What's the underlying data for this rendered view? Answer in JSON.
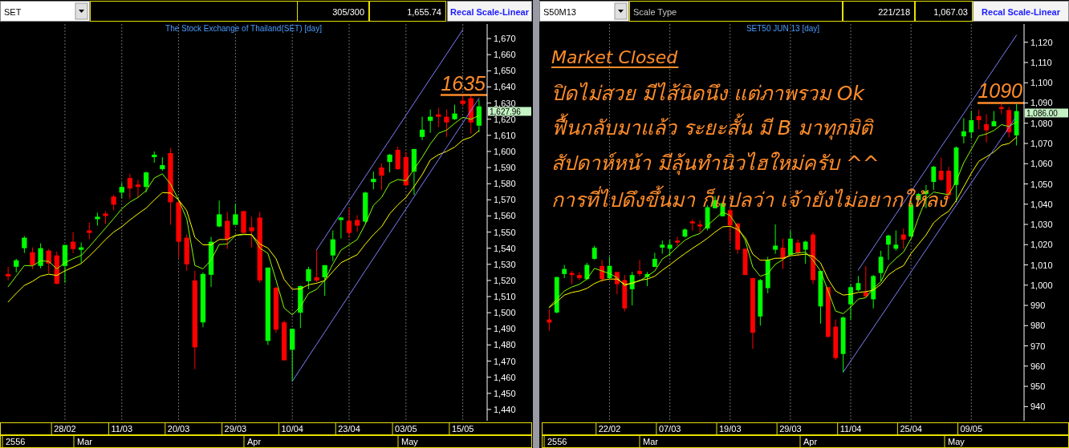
{
  "chart_data": [
    {
      "type": "candlestick",
      "title": "The Stock Exchange of Thailand(SET) [day]",
      "categories": [
        null,
        null,
        null,
        null,
        null,
        null,
        null,
        "28/02",
        null,
        null,
        null,
        null,
        null,
        null,
        "11/03",
        null,
        null,
        null,
        null,
        null,
        null,
        "20/03",
        null,
        null,
        null,
        null,
        null,
        null,
        "29/03",
        null,
        null,
        null,
        null,
        null,
        null,
        "10/04",
        null,
        null,
        null,
        null,
        null,
        null,
        "23/04",
        null,
        null,
        null,
        null,
        null,
        null,
        "03/05",
        null,
        null,
        null,
        null,
        null,
        null,
        "15/05",
        null,
        null
      ],
      "ohlc": [
        [
          1524,
          1528.5,
          1520,
          1522.5
        ],
        [
          1528.5,
          1533.5,
          1525,
          1532.5
        ],
        [
          1540,
          1547.5,
          1537,
          1546.5
        ],
        [
          1537.5,
          1540.5,
          1527,
          1529.5
        ],
        [
          1529,
          1543,
          1527.5,
          1540
        ],
        [
          1538.5,
          1539.5,
          1524.5,
          1530.5
        ],
        [
          1535.5,
          1538,
          1517.5,
          1518
        ],
        [
          1529,
          1542,
          1518.5,
          1542
        ],
        [
          1544,
          1550,
          1537,
          1539.5
        ],
        [
          1539,
          1543.5,
          1531,
          1540.5
        ],
        [
          1551,
          1556,
          1545.5,
          1549.5
        ],
        [
          1558,
          1562,
          1554,
          1559.5
        ],
        [
          1561.5,
          1563,
          1555,
          1560
        ],
        [
          1572,
          1573,
          1563.5,
          1567
        ],
        [
          1574.5,
          1580.5,
          1571,
          1578
        ],
        [
          1583.5,
          1586,
          1570.5,
          1577
        ],
        [
          1579.5,
          1582.5,
          1571.5,
          1578
        ],
        [
          1578,
          1587.5,
          1574.5,
          1587
        ],
        [
          1596.5,
          1600,
          1593,
          1598
        ],
        [
          1589,
          1596.5,
          1588,
          1591.5
        ],
        [
          1599,
          1602,
          1554.5,
          1568.5
        ],
        [
          1568.5,
          1570,
          1534,
          1544
        ],
        [
          1546.5,
          1548.5,
          1526,
          1530
        ],
        [
          1520,
          1526,
          1465,
          1478.5
        ],
        [
          1494,
          1525,
          1491,
          1524
        ],
        [
          1523.5,
          1547,
          1516,
          1544
        ],
        [
          1553.5,
          1569.5,
          1553,
          1561
        ],
        [
          1557,
          1562.5,
          1539.5,
          1545.5
        ],
        [
          1554.5,
          1567.5,
          1554.5,
          1561
        ],
        [
          1563,
          1563,
          1549.5,
          1549.5
        ],
        [
          1553,
          1559.5,
          1540.5,
          1550.5
        ],
        [
          1559,
          1562.5,
          1518.5,
          1520
        ],
        [
          1482.5,
          1528,
          1480,
          1528
        ],
        [
          1515.5,
          1516,
          1487.5,
          1489.5
        ],
        [
          1494,
          1495,
          1470.5,
          1470.5
        ],
        [
          1477,
          1490,
          1457.5,
          1490
        ],
        [
          1500,
          1517,
          1490.5,
          1516.5
        ],
        [
          1519.5,
          1528.5,
          1514.5,
          1527
        ],
        [
          1522,
          1539,
          1519,
          1520
        ],
        [
          1522,
          1529.5,
          1510.5,
          1529.5
        ],
        [
          1535.5,
          1551,
          1532,
          1545.5
        ],
        [
          1557.5,
          1559.5,
          1546,
          1559
        ],
        [
          1557,
          1565,
          1546.5,
          1549.5
        ],
        [
          1557.5,
          1560.5,
          1550,
          1554
        ],
        [
          1556.5,
          1575,
          1555,
          1574.5
        ],
        [
          1581,
          1587.5,
          1576.5,
          1583
        ],
        [
          1590,
          1592.5,
          1576,
          1585
        ],
        [
          1593.5,
          1598.5,
          1587,
          1598
        ],
        [
          1601,
          1603,
          1588.5,
          1589
        ],
        [
          1596.5,
          1599.5,
          1578.5,
          1579
        ],
        [
          1587.5,
          1601.5,
          1573,
          1601.5
        ],
        [
          1609,
          1621.5,
          1607,
          1613.5
        ],
        [
          1619,
          1626,
          1611.5,
          1621.5
        ],
        [
          1623,
          1627,
          1615,
          1621.5
        ],
        [
          1621.5,
          1626,
          1609,
          1618
        ],
        [
          1620,
          1629,
          1619.5,
          1623.5
        ],
        [
          1631.5,
          1635,
          1628,
          1629.5
        ],
        [
          1633,
          1635,
          1611,
          1618
        ],
        [
          1616,
          1632,
          1612,
          1627.96
        ]
      ],
      "series": [
        {
          "type": "line",
          "color": "#80ff00",
          "values": [
            1516.1,
            1522.7,
            1529.3,
            1529,
            1532.2,
            1531.8,
            1527.2,
            1531,
            1533.5,
            1535.5,
            1540.9,
            1546.7,
            1552.5,
            1558.3,
            1564.4,
            1568.6,
            1571.5,
            1575.7,
            1583.5,
            1586.1,
            1579.8,
            1569.9,
            1558.3,
            1529.3,
            1527.2,
            1532.7,
            1542.3,
            1542.6,
            1547.9,
            1548.4,
            1548.4,
            1540.1,
            1536.8,
            1520.2,
            1502.9,
            1498.7,
            1503.7,
            1512,
            1514.5,
            1520.2,
            1530.2,
            1538.8,
            1542.1,
            1545.4,
            1555,
            1566.6,
            1571.5,
            1580.3,
            1582.6,
            1581.8,
            1588.9,
            1596.4,
            1604.6,
            1611.3,
            1613.2,
            1617.4,
            1621.2,
            1619.9,
            1622.3
          ]
        },
        {
          "type": "line",
          "color": "#ffff00",
          "values": [
            1506.7,
            1512,
            1516.9,
            1519.4,
            1522.7,
            1523.9,
            1523.1,
            1526,
            1528.2,
            1530.5,
            1535.1,
            1540.1,
            1545.4,
            1550,
            1553.3,
            1557.5,
            1561.3,
            1564.9,
            1569.9,
            1574.5,
            1574.2,
            1569.9,
            1563.3,
            1546.7,
            1542.1,
            1542.1,
            1545.4,
            1545.4,
            1548,
            1548.7,
            1548.4,
            1542.6,
            1540.1,
            1533.5,
            1520.6,
            1514.5,
            1514.8,
            1517.3,
            1518.3,
            1519.9,
            1525.5,
            1531,
            1533.5,
            1536,
            1542.6,
            1548.4,
            1553.3,
            1561.3,
            1566.9,
            1571.5,
            1578.2,
            1585.6,
            1594.7,
            1598,
            1600,
            1602.7,
            1607.1,
            1608.8,
            1612.9
          ]
        },
        {
          "type": "line",
          "color": "#8080ff",
          "values": [
            null,
            null,
            null,
            null,
            null,
            null,
            null,
            null,
            null,
            null,
            null,
            null,
            null,
            null,
            null,
            null,
            null,
            null,
            null,
            null,
            null,
            null,
            null,
            null,
            null,
            null,
            null,
            null,
            null,
            null,
            null,
            null,
            null,
            null,
            null,
            1457.5,
            1465.1,
            1472.8,
            1480.4,
            1488,
            1495.7,
            1503.3,
            1510.9,
            1518.5,
            1526.2,
            1533.8,
            1541.4,
            1549.1,
            1556.7,
            1564.3,
            1571.9,
            1579.6,
            1587.2,
            1594.8,
            1602.5,
            1610.1,
            1617.7,
            1625.4,
            1633
          ]
        },
        {
          "type": "line",
          "color": "#8080ff",
          "values": [
            null,
            null,
            null,
            null,
            null,
            null,
            null,
            null,
            null,
            null,
            null,
            null,
            null,
            null,
            null,
            null,
            null,
            null,
            null,
            null,
            null,
            null,
            null,
            null,
            null,
            null,
            null,
            null,
            null,
            null,
            null,
            null,
            null,
            null,
            null,
            null,
            null,
            null,
            1539,
            1546.6,
            1554.2,
            1561.7,
            1569.3,
            1576.9,
            1584.5,
            1592.1,
            1599.7,
            1607.2,
            1614.8,
            1622.4,
            1630,
            1637.6,
            1645.2,
            1652.7,
            1660.3,
            1667.9,
            1675.5,
            null,
            null
          ]
        }
      ],
      "ylim": [
        1433,
        1679
      ],
      "yticks": [
        {
          "value": 1440,
          "label": "1,440"
        },
        {
          "value": 1450,
          "label": "1,450"
        },
        {
          "value": 1460,
          "label": "1,460"
        },
        {
          "value": 1470,
          "label": "1,470"
        },
        {
          "value": 1480,
          "label": "1,480"
        },
        {
          "value": 1490,
          "label": "1,490"
        },
        {
          "value": 1500,
          "label": "1,500"
        },
        {
          "value": 1510,
          "label": "1,510"
        },
        {
          "value": 1520,
          "label": "1,520"
        },
        {
          "value": 1530,
          "label": "1,530"
        },
        {
          "value": 1540,
          "label": "1,540"
        },
        {
          "value": 1550,
          "label": "1,550"
        },
        {
          "value": 1560,
          "label": "1,560"
        },
        {
          "value": 1570,
          "label": "1,570"
        },
        {
          "value": 1580,
          "label": "1,580"
        },
        {
          "value": 1590,
          "label": "1,590"
        },
        {
          "value": 1600,
          "label": "1,600"
        },
        {
          "value": 1610,
          "label": "1,610"
        },
        {
          "value": 1620,
          "label": "1,620"
        },
        {
          "value": 1630,
          "label": "1,630"
        },
        {
          "value": 1640,
          "label": "1,640"
        },
        {
          "value": 1650,
          "label": "1,650"
        },
        {
          "value": 1660,
          "label": "1,660"
        },
        {
          "value": 1670,
          "label": "1,670"
        }
      ],
      "ref_lines": [
        {
          "axis": "y",
          "value": 1635,
          "label": "1635",
          "color": "#ff8c2a"
        }
      ],
      "grid": "x",
      "annotations": [
        "SET",
        "305/300",
        "1,655.74",
        "Recal Scale-Linear",
        "2556",
        "Mar",
        "Apr",
        "May",
        "1,627.96"
      ]
    },
    {
      "type": "candlestick",
      "title": "SET50 JUN 13  [day]",
      "categories": [
        null,
        null,
        null,
        null,
        null,
        null,
        null,
        null,
        "22/02",
        null,
        null,
        null,
        null,
        null,
        null,
        null,
        "07/03",
        null,
        null,
        null,
        null,
        null,
        null,
        null,
        "19/03",
        null,
        null,
        null,
        null,
        null,
        null,
        null,
        "29/03",
        null,
        null,
        null,
        null,
        null,
        null,
        null,
        "11/04",
        null,
        null,
        null,
        null,
        null,
        null,
        null,
        "25/04",
        null,
        null,
        null,
        null,
        null,
        null,
        null,
        "09/05",
        null,
        null,
        null,
        null,
        null,
        null
      ],
      "ohlc": [
        [
          983,
          988,
          977.5,
          981.5
        ],
        [
          986.5,
          1004,
          986,
          1004
        ],
        [
          1005.5,
          1010,
          1003.5,
          1008
        ],
        [
          1006,
          1007,
          1000.5,
          1005
        ],
        [
          1005,
          1006.5,
          1002.5,
          1003.5
        ],
        [
          1003,
          1011,
          1002.5,
          1010
        ],
        [
          1013,
          1019.5,
          1012.5,
          1018.5
        ],
        [
          1009.5,
          1012.5,
          1001.5,
          1003
        ],
        [
          1003.5,
          1014,
          1003,
          1009.5
        ],
        [
          1006.5,
          1006.5,
          995.5,
          1000.5
        ],
        [
          1002.5,
          1005,
          987,
          988.5
        ],
        [
          998,
          1006.5,
          990,
          1005
        ],
        [
          1007,
          1012.5,
          1004.5,
          1005.5
        ],
        [
          1004,
          1006.5,
          999.5,
          1005.5
        ],
        [
          1009,
          1016,
          1009,
          1013
        ],
        [
          1018.5,
          1022,
          1015.5,
          1020
        ],
        [
          1018,
          1022.5,
          1014.5,
          1020
        ],
        [
          1022,
          1024,
          1019.5,
          1021
        ],
        [
          1024,
          1028,
          1023.5,
          1027.5
        ],
        [
          1031.5,
          1032.5,
          1027,
          1030.5
        ],
        [
          1030,
          1032,
          1026,
          1029
        ],
        [
          1028,
          1039.5,
          1027,
          1038.5
        ],
        [
          1038,
          1044,
          1038,
          1042
        ],
        [
          1034,
          1041,
          1034,
          1040.5
        ],
        [
          1037,
          1038,
          1021.5,
          1029.5
        ],
        [
          1030.5,
          1030.5,
          1015.5,
          1017.5
        ],
        [
          1018,
          1018,
          1005,
          1005
        ],
        [
          1003.5,
          1003.5,
          968.5,
          976.5
        ],
        [
          984.5,
          1003,
          980,
          1002.5
        ],
        [
          998.5,
          1014,
          996,
          1012.5
        ],
        [
          1017.5,
          1030,
          1015.5,
          1019.5
        ],
        [
          1018.5,
          1023,
          1008,
          1013
        ],
        [
          1015,
          1027,
          1015,
          1023
        ],
        [
          1021,
          1022.5,
          1014.5,
          1016
        ],
        [
          1017.5,
          1022,
          1010.5,
          1021.5
        ],
        [
          1025,
          1026,
          1000.5,
          1002.5
        ],
        [
          989.5,
          1007,
          981,
          1007
        ],
        [
          999,
          999,
          974,
          974.5
        ],
        [
          979.5,
          983,
          963,
          964
        ],
        [
          966,
          984.5,
          957,
          984
        ],
        [
          990.5,
          1000.5,
          983,
          999
        ],
        [
          997.5,
          1004.5,
          997,
          1001
        ],
        [
          996.5,
          1009.5,
          994,
          994.5
        ],
        [
          993,
          1005,
          988.5,
          1004.5
        ],
        [
          1006,
          1017,
          1002,
          1014
        ],
        [
          1020,
          1025,
          1012.5,
          1024.5
        ],
        [
          1018,
          1027,
          1017,
          1020
        ],
        [
          1025,
          1028,
          1018,
          1022.5
        ],
        [
          1024,
          1041.5,
          1024,
          1039.5
        ],
        [
          1042,
          1045.5,
          1041.5,
          1045
        ],
        [
          1045,
          1049.5,
          1038,
          1046.5
        ],
        [
          1051,
          1059,
          1047,
          1058.5
        ],
        [
          1056.5,
          1063,
          1051.5,
          1052
        ],
        [
          1056.5,
          1058.5,
          1042.5,
          1044.5
        ],
        [
          1049.5,
          1068.5,
          1041,
          1068
        ],
        [
          1073.5,
          1082.5,
          1070,
          1076
        ],
        [
          1075.5,
          1086,
          1072.5,
          1081.5
        ],
        [
          1083.5,
          1086.5,
          1077,
          1081.5
        ],
        [
          1079.5,
          1084.5,
          1070.5,
          1076.5
        ],
        [
          1078.5,
          1086,
          1078.5,
          1081
        ],
        [
          1088,
          1089.5,
          1084.5,
          1087
        ],
        [
          1086.5,
          1088,
          1073,
          1075.5
        ],
        [
          1074,
          1089.5,
          1069,
          1086
        ]
      ],
      "series": [
        {
          "type": "line",
          "color": "#80ff00",
          "values": [
            989.2,
            993.1,
            997.1,
            999.1,
            1000.4,
            1003,
            1008.3,
            1007,
            1005.7,
            1003.7,
            999.7,
            1001.3,
            1002.1,
            1004.4,
            1007,
            1012.9,
            1015.3,
            1018.9,
            1022.2,
            1024.2,
            1025.5,
            1029.5,
            1032.8,
            1036.1,
            1034.4,
            1028.8,
            1022.2,
            1009,
            1004.4,
            1005.7,
            1010.3,
            1012.6,
            1015.3,
            1015.9,
            1016.3,
            1012.3,
            1007,
            997.1,
            987.2,
            985.9,
            989.2,
            993.1,
            993.8,
            998.4,
            1001.7,
            1009.6,
            1013.2,
            1016.3,
            1022.9,
            1033.4,
            1042.7,
            1046,
            1045.3,
            1044.7,
            1051.3,
            1060.5,
            1067.1,
            1073.7,
            1074.7,
            1076.4,
            1079.3,
            1078.4,
            1080.6
          ]
        },
        {
          "type": "line",
          "color": "#ffff00",
          "values": [
            988.9,
            991.8,
            995.1,
            996.4,
            997.1,
            998.4,
            1000.8,
            1002.4,
            1003,
            1003,
            1000.4,
            1000.8,
            1002.4,
            1003,
            1004.4,
            1007.4,
            1010,
            1012.9,
            1015.6,
            1018.2,
            1020.6,
            1023.2,
            1026.2,
            1028.8,
            1029.1,
            1027.5,
            1023.5,
            1015.3,
            1012.3,
            1012.3,
            1013.3,
            1013.3,
            1014.5,
            1014.9,
            1015.3,
            1014.3,
            1011,
            1003,
            997.1,
            995.1,
            995.5,
            996.4,
            996.8,
            997.5,
            1000.4,
            1005,
            1007.7,
            1009.6,
            1015.6,
            1020.2,
            1024.8,
            1030.8,
            1034.1,
            1036.5,
            1041.8,
            1048.6,
            1055.3,
            1061.2,
            1063.4,
            1065.8,
            1069.1,
            1070,
            1073.1
          ]
        },
        {
          "type": "line",
          "color": "#8080ff",
          "values": [
            null,
            null,
            null,
            null,
            null,
            null,
            null,
            null,
            null,
            null,
            null,
            null,
            null,
            null,
            null,
            null,
            null,
            null,
            null,
            null,
            null,
            null,
            null,
            null,
            null,
            null,
            null,
            null,
            null,
            null,
            null,
            null,
            null,
            null,
            null,
            null,
            null,
            null,
            null,
            957,
            962.5,
            968,
            973.5,
            979,
            984.5,
            990,
            995.5,
            1001,
            1006.5,
            1012,
            1017.5,
            1023,
            1028.5,
            1034,
            1039.5,
            1045,
            1050.5,
            1056,
            1061.5,
            1067,
            1072.5,
            1078,
            1083.5
          ]
        },
        {
          "type": "line",
          "color": "#8080ff",
          "values": [
            null,
            null,
            null,
            null,
            null,
            null,
            null,
            null,
            null,
            null,
            null,
            null,
            null,
            null,
            null,
            null,
            null,
            null,
            null,
            null,
            null,
            null,
            null,
            null,
            null,
            null,
            null,
            null,
            null,
            null,
            null,
            null,
            null,
            null,
            null,
            null,
            null,
            null,
            null,
            null,
            null,
            1007.5,
            1013,
            1018.5,
            1024.1,
            1029.6,
            1035.1,
            1040.6,
            1046.2,
            1051.7,
            1057.2,
            1062.7,
            1068.3,
            1073.8,
            1079.3,
            1084.8,
            1090.4,
            1095.9,
            1101.4,
            1106.9,
            1112.5,
            1118,
            1123.5
          ]
        }
      ],
      "ylim": [
        933,
        1129
      ],
      "yticks": [
        940,
        950,
        960,
        970,
        980,
        990,
        {
          "value": 1000,
          "label": "1,000"
        },
        {
          "value": 1010,
          "label": "1,010"
        },
        {
          "value": 1020,
          "label": "1,020"
        },
        {
          "value": 1030,
          "label": "1,030"
        },
        {
          "value": 1040,
          "label": "1,040"
        },
        {
          "value": 1050,
          "label": "1,050"
        },
        {
          "value": 1060,
          "label": "1,060"
        },
        {
          "value": 1070,
          "label": "1,070"
        },
        {
          "value": 1080,
          "label": "1,080"
        },
        {
          "value": 1090,
          "label": "1,090"
        },
        {
          "value": 1100,
          "label": "1,100"
        },
        {
          "value": 1110,
          "label": "1,110"
        },
        {
          "value": 1120,
          "label": "1,120"
        }
      ],
      "ref_lines": [
        {
          "axis": "y",
          "value": 1090,
          "label": "1090",
          "color": "#ff8c2a"
        }
      ],
      "grid": "x",
      "annotations": [
        "S50M13",
        "Scale Type",
        "221/218",
        "1,067.03",
        "Recal Scale-Linear",
        "2556",
        "Mar",
        "Apr",
        "May",
        "Market Closed",
        "ปิดไม่สวย มีไส้นิดนึง แต่ภาพรวม Ok",
        "ฟื้นกลับมาแล้ว ระยะสั้น มี B มาทุกมิติ",
        "สัปดาห์หน้า มีลุ้นทำนิวไฮใหม่ครับ ^^",
        "การที่ไปดึงขึ้นมา ก็แปลว่า เจ้ายังไม่อยากให้ลง",
        "1,086.00"
      ]
    }
  ]
}
